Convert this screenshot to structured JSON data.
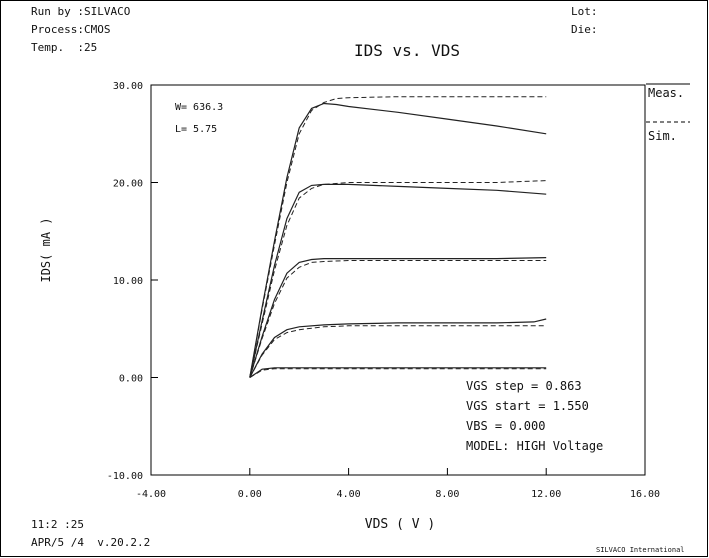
{
  "header": {
    "run_by": "Run by :SILVACO",
    "process": "Process:CMOS",
    "temp": "Temp.  :25",
    "lot": "Lot:",
    "die": "Die:"
  },
  "footer": {
    "time": "11:2 :25",
    "date_version": "APR/5 /4  v.20.2.2",
    "credit": "SILVACO International"
  },
  "legend": {
    "meas": "Meas.",
    "sim": "Sim."
  },
  "params": {
    "w": "W= 636.3",
    "l": "L= 5.75"
  },
  "info": [
    "VGS step  = 0.863",
    "VGS start = 1.550",
    "VBS       = 0.000",
    "MODEL: HIGH Voltage"
  ],
  "chart_data": {
    "type": "line",
    "title": "IDS vs. VDS",
    "xlabel": "VDS ( V )",
    "ylabel": "IDS( mA )",
    "xlim": [
      -4,
      16
    ],
    "ylim": [
      -10,
      30
    ],
    "x_ticks": [
      "-4.00",
      "0.00",
      "4.00",
      "8.00",
      "12.00",
      "16.00"
    ],
    "y_ticks": [
      "-10.00",
      "0.00",
      "10.00",
      "20.00",
      "30.00"
    ],
    "grid": false,
    "legend_position": "right",
    "series": [
      {
        "style": "solid",
        "curve": 1,
        "x": [
          0,
          0.5,
          1,
          2,
          4,
          6,
          8,
          10,
          12
        ],
        "y": [
          0,
          0.85,
          1.0,
          1.0,
          1.0,
          1.0,
          1.0,
          1.0,
          1.0
        ]
      },
      {
        "style": "dashed",
        "curve": 1,
        "x": [
          0,
          0.5,
          1,
          2,
          4,
          6,
          8,
          10,
          12
        ],
        "y": [
          0,
          0.75,
          0.9,
          0.9,
          0.9,
          0.9,
          0.9,
          0.9,
          0.9
        ]
      },
      {
        "style": "solid",
        "curve": 2,
        "x": [
          0,
          0.5,
          1,
          1.5,
          2,
          3,
          4,
          6,
          8,
          10,
          11.5,
          12
        ],
        "y": [
          0,
          2.4,
          4.1,
          4.9,
          5.2,
          5.4,
          5.5,
          5.6,
          5.6,
          5.6,
          5.7,
          6.0
        ]
      },
      {
        "style": "dashed",
        "curve": 2,
        "x": [
          0,
          0.5,
          1,
          1.5,
          2,
          3,
          4,
          6,
          8,
          10,
          12
        ],
        "y": [
          0,
          2.3,
          3.9,
          4.6,
          4.9,
          5.2,
          5.3,
          5.3,
          5.3,
          5.3,
          5.3
        ]
      },
      {
        "style": "solid",
        "curve": 3,
        "x": [
          0,
          0.5,
          1,
          1.5,
          2,
          2.5,
          3,
          4,
          6,
          8,
          10,
          12
        ],
        "y": [
          0,
          4.2,
          8.0,
          10.7,
          11.8,
          12.1,
          12.2,
          12.2,
          12.2,
          12.2,
          12.2,
          12.3
        ]
      },
      {
        "style": "dashed",
        "curve": 3,
        "x": [
          0,
          0.5,
          1,
          1.5,
          2,
          2.5,
          3,
          4,
          6,
          8,
          10,
          12
        ],
        "y": [
          0,
          4.0,
          7.6,
          10.2,
          11.3,
          11.8,
          11.9,
          12.0,
          12.0,
          12.0,
          12.0,
          12.0
        ]
      },
      {
        "style": "solid",
        "curve": 4,
        "x": [
          0,
          0.5,
          1,
          1.5,
          2,
          2.5,
          3,
          4,
          6,
          8,
          10,
          12
        ],
        "y": [
          0,
          5.8,
          11.5,
          16.3,
          19.0,
          19.7,
          19.8,
          19.8,
          19.6,
          19.4,
          19.2,
          18.8
        ]
      },
      {
        "style": "dashed",
        "curve": 4,
        "x": [
          0,
          0.5,
          1,
          1.5,
          2,
          2.5,
          3,
          4,
          6,
          8,
          10,
          12
        ],
        "y": [
          0,
          5.5,
          11.0,
          15.6,
          18.4,
          19.4,
          19.8,
          20.0,
          20.0,
          20.0,
          20.0,
          20.2
        ]
      },
      {
        "style": "solid",
        "curve": 5,
        "x": [
          0,
          0.5,
          1,
          1.5,
          2,
          2.5,
          3,
          3.5,
          4,
          6,
          8,
          10,
          12
        ],
        "y": [
          0,
          7.2,
          14.0,
          20.5,
          25.6,
          27.6,
          28.1,
          28.0,
          27.8,
          27.2,
          26.5,
          25.8,
          25.0
        ]
      },
      {
        "style": "dashed",
        "curve": 5,
        "x": [
          0,
          0.5,
          1,
          1.5,
          2,
          2.5,
          3,
          3.5,
          4,
          6,
          8,
          10,
          12
        ],
        "y": [
          0,
          7.0,
          13.6,
          20.0,
          25.0,
          27.4,
          28.2,
          28.6,
          28.7,
          28.8,
          28.8,
          28.8,
          28.8
        ]
      }
    ]
  }
}
